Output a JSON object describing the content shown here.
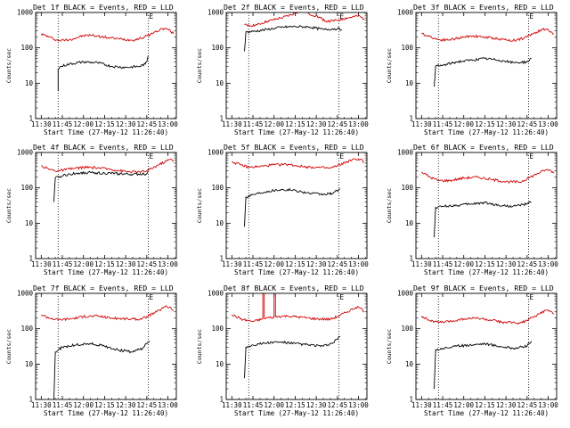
{
  "figure": {
    "background": "#ffffff",
    "axis_color": "#000000"
  },
  "chart_data": [
    {
      "type": "line",
      "title": "Det 1f BLACK = Events, RED = LLD",
      "xlabel": "Start Time (27-May-12 11:26:40)",
      "ylabel": "Counts/sec",
      "xlim": [
        "11:26",
        "13:06"
      ],
      "ylim": [
        1,
        1000
      ],
      "y_scale": "log",
      "x_tick_labels": [
        "11:30",
        "11:45",
        "12:00",
        "12:15",
        "12:30",
        "12:45",
        "13:00"
      ],
      "y_tick_labels": [
        "1",
        "10",
        "100",
        "1000"
      ],
      "markers": [
        {
          "x": "11:42",
          "label": ""
        },
        {
          "x": "12:46",
          "label": "E"
        }
      ],
      "series": [
        {
          "color": "#d00000",
          "x": [
            "11:30",
            "11:36",
            "11:42",
            "11:50",
            "12:00",
            "12:05",
            "12:15",
            "12:25",
            "12:35",
            "12:43",
            "12:50",
            "12:56",
            "13:00",
            "13:04"
          ],
          "values": [
            250,
            200,
            160,
            170,
            220,
            230,
            200,
            180,
            165,
            200,
            270,
            350,
            340,
            250
          ]
        },
        {
          "color": "#000000",
          "x": [
            "11:42",
            "11:42",
            "11:44",
            "11:50",
            "12:00",
            "12:10",
            "12:20",
            "12:30",
            "12:40",
            "12:44",
            "12:45",
            "12:46"
          ],
          "values": [
            6,
            25,
            30,
            35,
            40,
            38,
            30,
            28,
            30,
            35,
            40,
            60
          ]
        }
      ]
    },
    {
      "type": "line",
      "title": "Det 2f BLACK = Events, RED = LLD",
      "xlabel": "Start Time (27-May-12 11:26:40)",
      "ylabel": "Counts/sec",
      "xlim": [
        "11:26",
        "13:06"
      ],
      "ylim": [
        1,
        1000
      ],
      "y_scale": "log",
      "x_tick_labels": [
        "11:30",
        "11:45",
        "12:00",
        "12:15",
        "12:30",
        "12:45",
        "13:00"
      ],
      "y_tick_labels": [
        "1",
        "10",
        "100",
        "1000"
      ],
      "markers": [
        {
          "x": "11:42",
          "label": ""
        },
        {
          "x": "12:46",
          "label": "E"
        }
      ],
      "series": [
        {
          "color": "#d00000",
          "x": [
            "11:39",
            "11:41",
            "11:48",
            "11:55",
            "12:05",
            "12:12",
            "12:20",
            "12:25",
            "12:30",
            "12:38",
            "12:45",
            "12:52",
            "13:00",
            "13:04"
          ],
          "values": [
            450,
            420,
            450,
            560,
            700,
            850,
            1200,
            900,
            800,
            550,
            600,
            700,
            800,
            650
          ]
        },
        {
          "color": "#000000",
          "x": [
            "11:39",
            "11:40",
            "11:45",
            "11:55",
            "12:05",
            "12:15",
            "12:25",
            "12:35",
            "12:45",
            "12:48"
          ],
          "values": [
            80,
            280,
            290,
            330,
            380,
            400,
            390,
            330,
            350,
            330
          ]
        }
      ]
    },
    {
      "type": "line",
      "title": "Det 3f BLACK = Events, RED = LLD",
      "xlabel": "Start Time (27-May-12 11:26:40)",
      "ylabel": "Counts/sec",
      "xlim": [
        "11:26",
        "13:06"
      ],
      "ylim": [
        1,
        1000
      ],
      "y_scale": "log",
      "x_tick_labels": [
        "11:30",
        "11:45",
        "12:00",
        "12:15",
        "12:30",
        "12:45",
        "13:00"
      ],
      "y_tick_labels": [
        "1",
        "10",
        "100",
        "1000"
      ],
      "markers": [
        {
          "x": "11:42",
          "label": ""
        },
        {
          "x": "12:46",
          "label": "E"
        }
      ],
      "series": [
        {
          "color": "#d00000",
          "x": [
            "11:30",
            "11:36",
            "11:42",
            "11:50",
            "12:00",
            "12:05",
            "12:15",
            "12:25",
            "12:35",
            "12:43",
            "12:50",
            "12:56",
            "13:00",
            "13:04"
          ],
          "values": [
            250,
            210,
            170,
            170,
            200,
            220,
            200,
            180,
            160,
            190,
            260,
            330,
            330,
            250
          ]
        },
        {
          "color": "#000000",
          "x": [
            "11:39",
            "11:40",
            "11:45",
            "11:55",
            "12:05",
            "12:15",
            "12:25",
            "12:35",
            "12:45",
            "12:48"
          ],
          "values": [
            8,
            30,
            32,
            40,
            45,
            50,
            45,
            38,
            40,
            50
          ]
        }
      ]
    },
    {
      "type": "line",
      "title": "Det 4f BLACK = Events, RED = LLD",
      "xlabel": "Start Time (27-May-12 11:26:40)",
      "ylabel": "Counts/sec",
      "xlim": [
        "11:26",
        "13:06"
      ],
      "ylim": [
        1,
        1000
      ],
      "y_scale": "log",
      "x_tick_labels": [
        "11:30",
        "11:45",
        "12:00",
        "12:15",
        "12:30",
        "12:45",
        "13:00"
      ],
      "y_tick_labels": [
        "1",
        "10",
        "100",
        "1000"
      ],
      "markers": [
        {
          "x": "11:42",
          "label": ""
        },
        {
          "x": "12:46",
          "label": "E"
        }
      ],
      "series": [
        {
          "color": "#d00000",
          "x": [
            "11:30",
            "11:36",
            "11:42",
            "11:50",
            "12:00",
            "12:10",
            "12:20",
            "12:30",
            "12:40",
            "12:45",
            "12:52",
            "12:58",
            "13:02",
            "13:04"
          ],
          "values": [
            420,
            330,
            300,
            340,
            380,
            370,
            330,
            290,
            280,
            300,
            420,
            550,
            650,
            550
          ]
        },
        {
          "color": "#000000",
          "x": [
            "11:39",
            "11:40",
            "11:45",
            "11:55",
            "12:05",
            "12:15",
            "12:25",
            "12:35",
            "12:45",
            "12:46"
          ],
          "values": [
            40,
            190,
            220,
            260,
            270,
            260,
            250,
            240,
            250,
            300
          ]
        }
      ]
    },
    {
      "type": "line",
      "title": "Det 5f BLACK = Events, RED = LLD",
      "xlabel": "Start Time (27-May-12 11:26:40)",
      "ylabel": "Counts/sec",
      "xlim": [
        "11:26",
        "13:06"
      ],
      "ylim": [
        1,
        1000
      ],
      "y_scale": "log",
      "x_tick_labels": [
        "11:30",
        "11:45",
        "12:00",
        "12:15",
        "12:30",
        "12:45",
        "13:00"
      ],
      "y_tick_labels": [
        "1",
        "10",
        "100",
        "1000"
      ],
      "markers": [
        {
          "x": "11:42",
          "label": ""
        },
        {
          "x": "12:46",
          "label": "E"
        }
      ],
      "series": [
        {
          "color": "#d00000",
          "x": [
            "11:30",
            "11:36",
            "11:42",
            "11:50",
            "12:00",
            "12:10",
            "12:20",
            "12:30",
            "12:40",
            "12:45",
            "12:52",
            "12:58",
            "13:02",
            "13:04"
          ],
          "values": [
            550,
            450,
            380,
            400,
            450,
            460,
            400,
            380,
            360,
            420,
            550,
            650,
            640,
            520
          ]
        },
        {
          "color": "#000000",
          "x": [
            "11:39",
            "11:40",
            "11:45",
            "11:55",
            "12:05",
            "12:15",
            "12:25",
            "12:35",
            "12:42",
            "12:47"
          ],
          "values": [
            8,
            55,
            65,
            80,
            90,
            85,
            70,
            65,
            70,
            95
          ]
        }
      ]
    },
    {
      "type": "line",
      "title": "Det 6f BLACK = Events, RED = LLD",
      "xlabel": "Start Time (27-May-12 11:26:40)",
      "ylabel": "Counts/sec",
      "xlim": [
        "11:26",
        "13:06"
      ],
      "ylim": [
        1,
        1000
      ],
      "y_scale": "log",
      "x_tick_labels": [
        "11:30",
        "11:45",
        "12:00",
        "12:15",
        "12:30",
        "12:45",
        "13:00"
      ],
      "y_tick_labels": [
        "1",
        "10",
        "100",
        "1000"
      ],
      "markers": [
        {
          "x": "11:42",
          "label": ""
        },
        {
          "x": "12:46",
          "label": "E"
        }
      ],
      "series": [
        {
          "color": "#d00000",
          "x": [
            "11:30",
            "11:36",
            "11:42",
            "11:50",
            "12:00",
            "12:10",
            "12:20",
            "12:30",
            "12:40",
            "12:45",
            "12:52",
            "12:58",
            "13:02",
            "13:04"
          ],
          "values": [
            280,
            200,
            160,
            160,
            190,
            200,
            170,
            150,
            145,
            180,
            250,
            320,
            310,
            260
          ]
        },
        {
          "color": "#000000",
          "x": [
            "11:39",
            "11:40",
            "11:45",
            "11:55",
            "12:05",
            "12:15",
            "12:25",
            "12:35",
            "12:45",
            "12:48"
          ],
          "values": [
            4,
            28,
            30,
            32,
            35,
            38,
            32,
            30,
            35,
            40
          ]
        }
      ]
    },
    {
      "type": "line",
      "title": "Det 7f BLACK = Events, RED = LLD",
      "xlabel": "Start Time (27-May-12 11:26:40)",
      "ylabel": "Counts/sec",
      "xlim": [
        "11:26",
        "13:06"
      ],
      "ylim": [
        1,
        1000
      ],
      "y_scale": "log",
      "x_tick_labels": [
        "11:30",
        "11:45",
        "12:00",
        "12:15",
        "12:30",
        "12:45",
        "13:00"
      ],
      "y_tick_labels": [
        "1",
        "10",
        "100",
        "1000"
      ],
      "markers": [
        {
          "x": "11:42",
          "label": ""
        },
        {
          "x": "12:46",
          "label": "E"
        }
      ],
      "series": [
        {
          "color": "#d00000",
          "x": [
            "11:30",
            "11:36",
            "11:42",
            "11:50",
            "12:00",
            "12:10",
            "12:20",
            "12:30",
            "12:40",
            "12:45",
            "12:52",
            "12:58",
            "13:02",
            "13:04"
          ],
          "values": [
            250,
            200,
            180,
            190,
            220,
            230,
            200,
            190,
            185,
            220,
            300,
            420,
            400,
            320
          ]
        },
        {
          "color": "#000000",
          "x": [
            "11:39",
            "11:40",
            "11:45",
            "11:55",
            "12:05",
            "12:15",
            "12:25",
            "12:35",
            "12:42",
            "12:47"
          ],
          "values": [
            1,
            22,
            30,
            35,
            38,
            32,
            25,
            22,
            28,
            45
          ]
        }
      ]
    },
    {
      "type": "line",
      "title": "Det 8f BLACK = Events, RED = LLD",
      "xlabel": "Start Time (27-May-12 11:26:40)",
      "ylabel": "Counts/sec",
      "xlim": [
        "11:26",
        "13:06"
      ],
      "ylim": [
        1,
        1000
      ],
      "y_scale": "log",
      "x_tick_labels": [
        "11:30",
        "11:45",
        "12:00",
        "12:15",
        "12:30",
        "12:45",
        "13:00"
      ],
      "y_tick_labels": [
        "1",
        "10",
        "100",
        "1000"
      ],
      "markers": [
        {
          "x": "11:42",
          "label": ""
        },
        {
          "x": "12:46",
          "label": "E"
        }
      ],
      "series": [
        {
          "color": "#d00000",
          "x": [
            "11:30",
            "11:38",
            "11:45",
            "11:52",
            "11:52",
            "11:53",
            "11:53",
            "12:00",
            "12:00",
            "12:01",
            "12:01",
            "12:10",
            "12:20",
            "12:30",
            "12:40",
            "12:45",
            "12:52",
            "12:58",
            "13:02",
            "13:04"
          ],
          "values": [
            250,
            180,
            160,
            190,
            1000,
            1000,
            200,
            210,
            1000,
            1000,
            220,
            230,
            210,
            190,
            185,
            220,
            300,
            400,
            380,
            300
          ]
        },
        {
          "color": "#000000",
          "x": [
            "11:39",
            "11:40",
            "11:45",
            "11:55",
            "12:05",
            "12:15",
            "12:25",
            "12:35",
            "12:42",
            "12:47"
          ],
          "values": [
            4,
            30,
            35,
            40,
            42,
            38,
            35,
            32,
            40,
            60
          ]
        }
      ]
    },
    {
      "type": "line",
      "title": "Det 9f BLACK = Events, RED = LLD",
      "xlabel": "Start Time (27-May-12 11:26:40)",
      "ylabel": "Counts/sec",
      "xlim": [
        "11:26",
        "13:06"
      ],
      "ylim": [
        1,
        1000
      ],
      "y_scale": "log",
      "x_tick_labels": [
        "11:30",
        "11:45",
        "12:00",
        "12:15",
        "12:30",
        "12:45",
        "13:00"
      ],
      "y_tick_labels": [
        "1",
        "10",
        "100",
        "1000"
      ],
      "markers": [
        {
          "x": "11:42",
          "label": ""
        },
        {
          "x": "12:46",
          "label": "E"
        }
      ],
      "series": [
        {
          "color": "#d00000",
          "x": [
            "11:30",
            "11:36",
            "11:42",
            "11:50",
            "12:00",
            "12:10",
            "12:20",
            "12:30",
            "12:40",
            "12:45",
            "12:52",
            "12:58",
            "13:02",
            "13:04"
          ],
          "values": [
            230,
            170,
            150,
            160,
            190,
            200,
            170,
            150,
            145,
            170,
            240,
            330,
            310,
            260
          ]
        },
        {
          "color": "#000000",
          "x": [
            "11:39",
            "11:40",
            "11:45",
            "11:55",
            "12:05",
            "12:15",
            "12:25",
            "12:35",
            "12:45",
            "12:48"
          ],
          "values": [
            2,
            25,
            28,
            32,
            35,
            38,
            32,
            28,
            32,
            45
          ]
        }
      ]
    }
  ]
}
